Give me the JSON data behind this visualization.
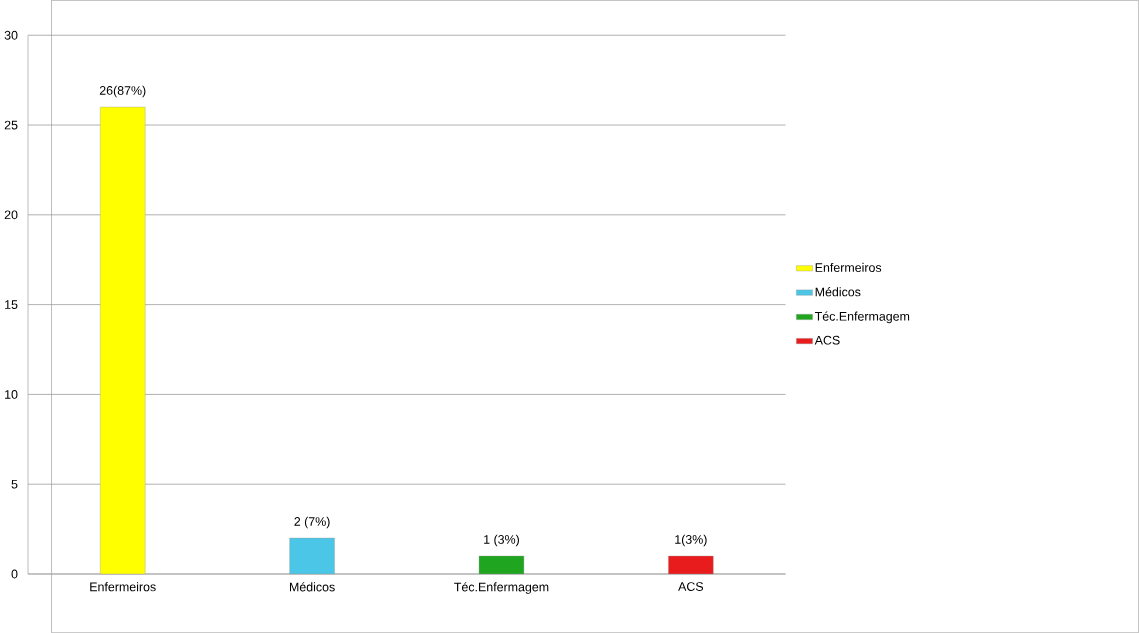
{
  "chart_data": {
    "type": "bar",
    "categories": [
      "Enfermeiros",
      "Médicos",
      "Téc.Enfermagem",
      "ACS"
    ],
    "series": [
      {
        "name": "Enfermeiros",
        "color": "#ffff00",
        "values": [
          26,
          null,
          null,
          null
        ],
        "value_labels": [
          "26(87%)",
          null,
          null,
          null
        ]
      },
      {
        "name": "Médicos",
        "color": "#4bc6e6",
        "values": [
          null,
          2,
          null,
          null
        ],
        "value_labels": [
          null,
          "2 (7%)",
          null,
          null
        ]
      },
      {
        "name": "Téc.Enfermagem",
        "color": "#1fa51f",
        "values": [
          null,
          null,
          1,
          null
        ],
        "value_labels": [
          null,
          null,
          "1 (3%)",
          null
        ]
      },
      {
        "name": "ACS",
        "color": "#e81c1c",
        "values": [
          null,
          null,
          null,
          1
        ],
        "value_labels": [
          null,
          null,
          null,
          "1(3%)"
        ]
      }
    ],
    "ylim": [
      0,
      30
    ],
    "yticks": [
      0,
      5,
      10,
      15,
      20,
      25,
      30
    ],
    "grid": "y",
    "legend": "right"
  }
}
